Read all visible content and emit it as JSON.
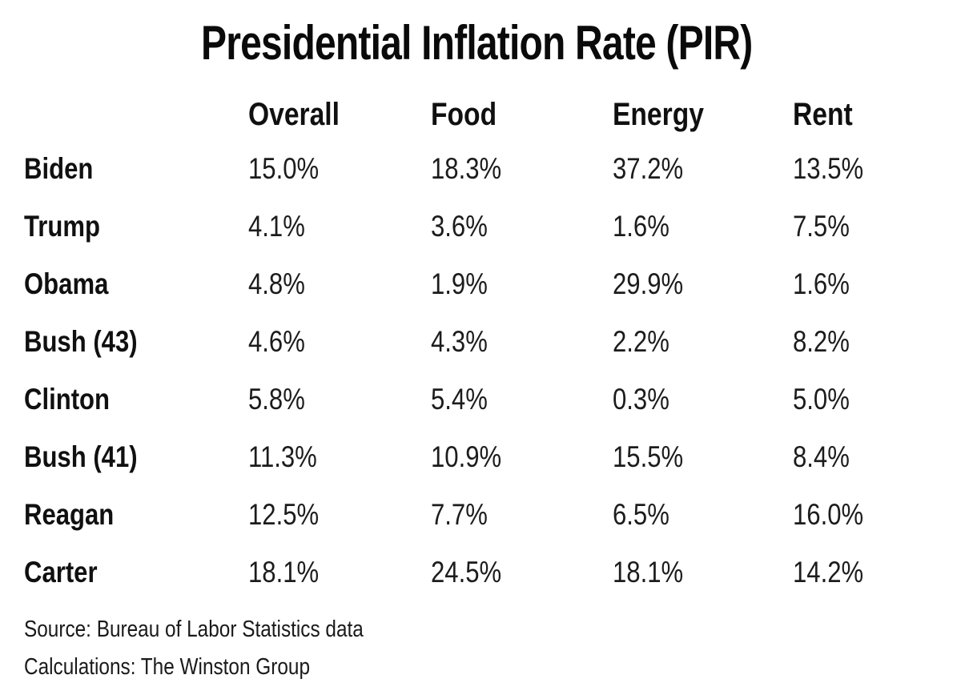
{
  "title": "Presidential Inflation Rate (PIR)",
  "chart_data": {
    "type": "table",
    "title": "Presidential Inflation Rate (PIR)",
    "columns": [
      "Overall",
      "Food",
      "Energy",
      "Rent"
    ],
    "rows": [
      {
        "label": "Biden",
        "values": [
          "15.0%",
          "18.3%",
          "37.2%",
          "13.5%"
        ]
      },
      {
        "label": "Trump",
        "values": [
          "4.1%",
          "3.6%",
          "1.6%",
          "7.5%"
        ]
      },
      {
        "label": "Obama",
        "values": [
          "4.8%",
          "1.9%",
          "29.9%",
          "1.6%"
        ]
      },
      {
        "label": "Bush (43)",
        "values": [
          "4.6%",
          "4.3%",
          "2.2%",
          "8.2%"
        ]
      },
      {
        "label": "Clinton",
        "values": [
          "5.8%",
          "5.4%",
          "0.3%",
          "5.0%"
        ]
      },
      {
        "label": "Bush (41)",
        "values": [
          "11.3%",
          "10.9%",
          "15.5%",
          "8.4%"
        ]
      },
      {
        "label": "Reagan",
        "values": [
          "12.5%",
          "7.7%",
          "6.5%",
          "16.0%"
        ]
      },
      {
        "label": "Carter",
        "values": [
          "18.1%",
          "24.5%",
          "18.1%",
          "14.2%"
        ]
      }
    ],
    "layout": {
      "legend": "none",
      "grid": "off",
      "value_unit": "percent"
    }
  },
  "notes": {
    "source": "Source: Bureau of Labor Statistics data",
    "calculations": "Calculations: The Winston Group"
  },
  "colors": {
    "background": "#ffffff",
    "text": "#111111"
  }
}
